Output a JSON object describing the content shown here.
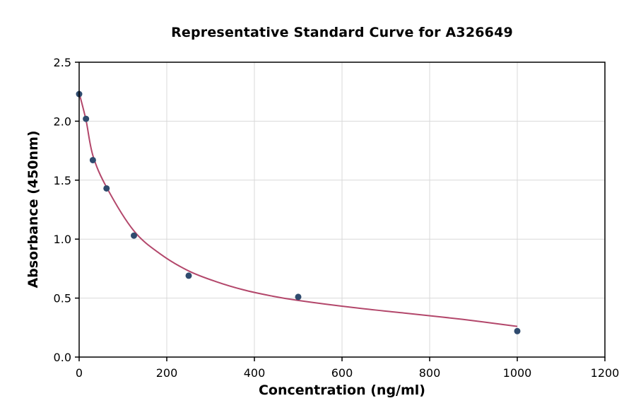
{
  "chart_data": {
    "type": "scatter",
    "title": "Representative Standard Curve for A326649",
    "xlabel": "Concentration (ng/ml)",
    "ylabel": "Absorbance (450nm)",
    "xlim": [
      0,
      1200
    ],
    "ylim": [
      0,
      2.5
    ],
    "x_ticks": [
      0,
      200,
      400,
      600,
      800,
      1000,
      1200
    ],
    "y_ticks": [
      0,
      0.5,
      1,
      1.5,
      2,
      2.5
    ],
    "grid": true,
    "legend": "none",
    "points": {
      "x": [
        0,
        15.6,
        31.3,
        62.5,
        125,
        250,
        500,
        1000
      ],
      "y": [
        2.23,
        2.02,
        1.67,
        1.43,
        1.03,
        0.69,
        0.51,
        0.22
      ]
    },
    "fit_curve": {
      "description": "4-parameter logistic fit line through standards",
      "points": [
        [
          0,
          2.24
        ],
        [
          15.6,
          2.01
        ],
        [
          31.3,
          1.71
        ],
        [
          62.5,
          1.44
        ],
        [
          125,
          1.07
        ],
        [
          187,
          0.87
        ],
        [
          250,
          0.73
        ],
        [
          312,
          0.64
        ],
        [
          375,
          0.57
        ],
        [
          437,
          0.52
        ],
        [
          500,
          0.48
        ],
        [
          625,
          0.42
        ],
        [
          750,
          0.37
        ],
        [
          875,
          0.32
        ],
        [
          1000,
          0.26
        ]
      ]
    },
    "colors": {
      "point": "#2f4b6e",
      "curve": "#b3476b",
      "grid": "#d9d9d9",
      "axis": "#000000",
      "background": "#ffffff"
    }
  }
}
